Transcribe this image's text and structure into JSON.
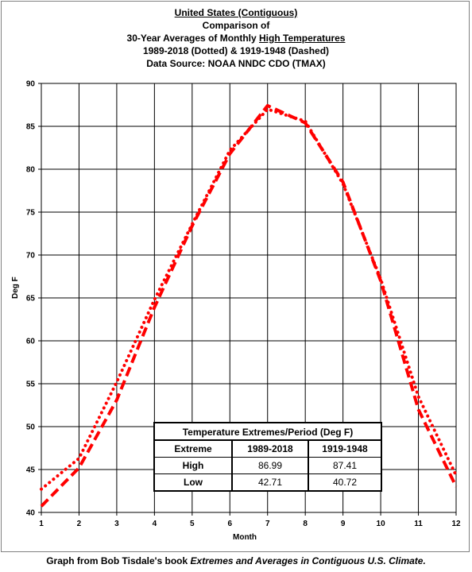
{
  "chart_data": {
    "type": "line",
    "title_lines": [
      "United States (Contiguous)",
      "Comparison of",
      "30-Year Averages of Monthly High Temperatures",
      "1989-2018 (Dotted) & 1919-1948 (Dashed)",
      "Data Source: NOAA NNDC CDO (TMAX)"
    ],
    "xlabel": "Month",
    "ylabel": "Deg F",
    "x": [
      1,
      2,
      3,
      4,
      5,
      6,
      7,
      8,
      9,
      10,
      11,
      12
    ],
    "xlim": [
      1,
      12
    ],
    "ylim": [
      40,
      90
    ],
    "yticks": [
      40,
      45,
      50,
      55,
      60,
      65,
      70,
      75,
      80,
      85,
      90
    ],
    "grid": true,
    "line_color": "#ff0000",
    "series": [
      {
        "name": "1989-2018",
        "style": "dotted",
        "values": [
          42.71,
          46.3,
          55.2,
          64.8,
          73.6,
          82.2,
          86.99,
          85.6,
          78.3,
          67.2,
          53.5,
          44.3
        ]
      },
      {
        "name": "1919-1948",
        "style": "dashed",
        "values": [
          40.72,
          45.2,
          53.1,
          63.9,
          73.4,
          81.8,
          87.41,
          85.4,
          78.5,
          67.0,
          52.0,
          43.0
        ]
      }
    ]
  },
  "table": {
    "title": "Temperature Extremes/Period (Deg F)",
    "headers": [
      "Extreme",
      "1989-2018",
      "1919-1948"
    ],
    "rows": [
      [
        "High",
        "86.99",
        "87.41"
      ],
      [
        "Low",
        "42.71",
        "40.72"
      ]
    ]
  },
  "footer": {
    "prefix": "Graph from Bob Tisdale's book ",
    "book": "Extremes and Averages in Contiguous U.S. Climate."
  }
}
